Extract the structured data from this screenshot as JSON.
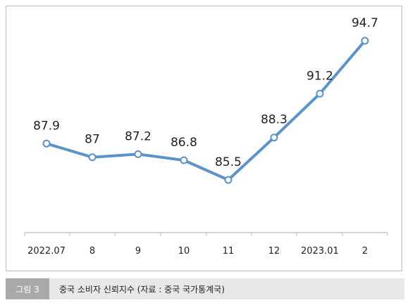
{
  "caption": {
    "tag": "그림 3",
    "text": "중국 소비자 신뢰지수 (자료 : 중국 국가통계국)"
  },
  "colors": {
    "line": "#5b93cc",
    "marker_fill": "#ffffff",
    "axis": "#c8c8c8",
    "label_text": "#222222"
  },
  "chart_data": {
    "type": "line",
    "title": "",
    "xlabel": "",
    "ylabel": "",
    "categories": [
      "2022.07",
      "8",
      "9",
      "10",
      "11",
      "12",
      "2023.01",
      "2"
    ],
    "series": [
      {
        "values": [
          87.9,
          87,
          87.2,
          86.8,
          85.5,
          88.3,
          91.2,
          94.7
        ]
      }
    ],
    "data_labels": [
      "87.9",
      "87",
      "87.2",
      "86.8",
      "85.5",
      "88.3",
      "91.2",
      "94.7"
    ],
    "ylim": [
      80,
      95
    ],
    "grid": false,
    "legend": "none",
    "markers": "hollow-circle"
  }
}
